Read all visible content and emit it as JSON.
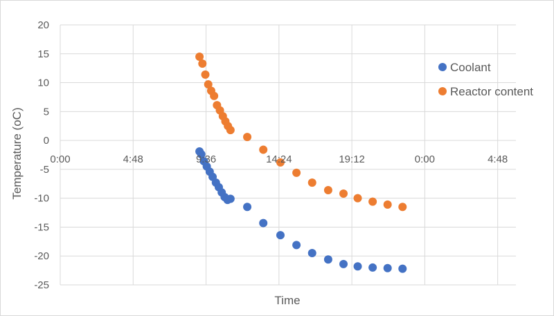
{
  "chart_data": {
    "type": "scatter",
    "title": "",
    "xlabel": "Time",
    "ylabel": "Temperature (oC)",
    "xlim": [
      0,
      1.25
    ],
    "ylim": [
      -25,
      20
    ],
    "x_ticks": [
      {
        "value": 0,
        "label": "0:00"
      },
      {
        "value": 0.2,
        "label": "4:48"
      },
      {
        "value": 0.4,
        "label": "9:36"
      },
      {
        "value": 0.6,
        "label": "14:24"
      },
      {
        "value": 0.8,
        "label": "19:12"
      },
      {
        "value": 1.0,
        "label": "0:00"
      },
      {
        "value": 1.2,
        "label": "4:48"
      }
    ],
    "y_ticks": [
      20,
      15,
      10,
      5,
      0,
      -5,
      -10,
      -15,
      -20,
      -25
    ],
    "grid": true,
    "legend": "right",
    "series": [
      {
        "name": "Coolant",
        "color": "#4472c4",
        "points": [
          [
            0.382,
            -1.9
          ],
          [
            0.387,
            -2.4
          ],
          [
            0.394,
            -3.6
          ],
          [
            0.402,
            -4.5
          ],
          [
            0.41,
            -5.4
          ],
          [
            0.418,
            -6.3
          ],
          [
            0.427,
            -7.3
          ],
          [
            0.435,
            -8.1
          ],
          [
            0.443,
            -9.0
          ],
          [
            0.451,
            -9.8
          ],
          [
            0.459,
            -10.3
          ],
          [
            0.467,
            -10.1
          ],
          [
            0.513,
            -11.5
          ],
          [
            0.557,
            -14.3
          ],
          [
            0.604,
            -16.4
          ],
          [
            0.648,
            -18.1
          ],
          [
            0.691,
            -19.5
          ],
          [
            0.735,
            -20.6
          ],
          [
            0.777,
            -21.4
          ],
          [
            0.816,
            -21.8
          ],
          [
            0.857,
            -22.0
          ],
          [
            0.898,
            -22.1
          ],
          [
            0.939,
            -22.2
          ]
        ]
      },
      {
        "name": "Reactor content",
        "color": "#ed7d31",
        "points": [
          [
            0.382,
            14.5
          ],
          [
            0.39,
            13.3
          ],
          [
            0.398,
            11.4
          ],
          [
            0.406,
            9.7
          ],
          [
            0.414,
            8.6
          ],
          [
            0.422,
            7.7
          ],
          [
            0.43,
            6.1
          ],
          [
            0.438,
            5.2
          ],
          [
            0.446,
            4.2
          ],
          [
            0.453,
            3.3
          ],
          [
            0.46,
            2.5
          ],
          [
            0.467,
            1.8
          ],
          [
            0.513,
            0.6
          ],
          [
            0.557,
            -1.6
          ],
          [
            0.604,
            -3.8
          ],
          [
            0.648,
            -5.6
          ],
          [
            0.691,
            -7.3
          ],
          [
            0.735,
            -8.6
          ],
          [
            0.777,
            -9.2
          ],
          [
            0.816,
            -10.0
          ],
          [
            0.857,
            -10.6
          ],
          [
            0.898,
            -11.1
          ],
          [
            0.939,
            -11.5
          ]
        ]
      }
    ]
  }
}
